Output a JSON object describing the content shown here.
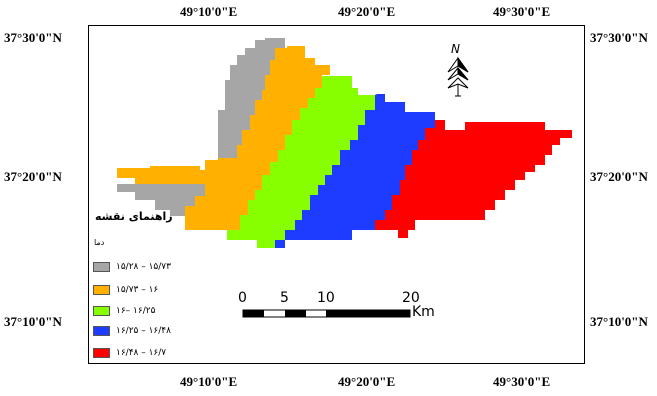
{
  "coordinates": {
    "top_lon": [
      "49°10'0\"E",
      "49°20'0\"E",
      "49°30'0\"E"
    ],
    "bottom_lon": [
      "49°10'0\"E",
      "49°20'0\"E",
      "49°30'0\"E"
    ],
    "left_lat": [
      "37°30'0\"N",
      "37°20'0\"N",
      "37°10'0\"N"
    ],
    "right_lat": [
      "37°30'0\"N",
      "37°20'0\"N",
      "37°10'0\"N"
    ]
  },
  "legend": {
    "title": "راهنمای نقشه",
    "subtitle": "دما",
    "items": [
      {
        "label": "۱۵/۲۸ – ۱۵/۷۳",
        "color": "#a6a6a6"
      },
      {
        "label": "۱۵/۷۳ – ۱۶",
        "color": "#ffb000"
      },
      {
        "label": "۱۶– ۱۶/۲۵",
        "color": "#88ff00"
      },
      {
        "label": "۱۶/۲۵ – ۱۶/۴۸",
        "color": "#1e3cff"
      },
      {
        "label": "۱۶/۴۸ – ۱۶/۷",
        "color": "#ff0000"
      }
    ]
  },
  "scale_bar": {
    "ticks": [
      "0",
      "5",
      "10",
      "20"
    ],
    "unit": "Km"
  },
  "north_arrow": {
    "label": "N",
    "icon": "north-arrow-icon"
  }
}
